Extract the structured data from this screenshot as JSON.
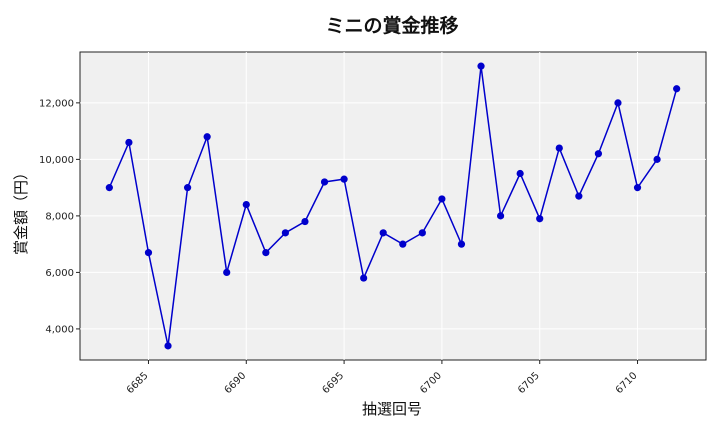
{
  "chart_data": {
    "type": "line",
    "title": "ミニの賞金推移",
    "xlabel": "抽選回号",
    "ylabel": "賞金額（円）",
    "x": [
      6683,
      6684,
      6685,
      6686,
      6687,
      6688,
      6689,
      6690,
      6691,
      6692,
      6693,
      6694,
      6695,
      6696,
      6697,
      6698,
      6699,
      6700,
      6701,
      6702,
      6703,
      6704,
      6705,
      6706,
      6707,
      6708,
      6709,
      6710,
      6711,
      6712
    ],
    "series": [
      {
        "values": [
          9000,
          10600,
          6700,
          3400,
          9000,
          10800,
          6000,
          8400,
          6700,
          7400,
          7800,
          9200,
          9300,
          5800,
          7400,
          7000,
          7400,
          8600,
          7000,
          13300,
          8000,
          9500,
          7900,
          10400,
          8700,
          10200,
          12000,
          9000,
          10000,
          12500
        ],
        "color": "#0000cc"
      }
    ],
    "xticks": [
      "6685",
      "6690",
      "6695",
      "6700",
      "6705",
      "6710"
    ],
    "yticks": [
      "4,000",
      "6,000",
      "8,000",
      "10,000",
      "12,000"
    ],
    "xlim": [
      6681.5,
      6713.5
    ],
    "ylim": [
      2900,
      13800
    ],
    "grid": true,
    "background": "#f0f0f0"
  }
}
